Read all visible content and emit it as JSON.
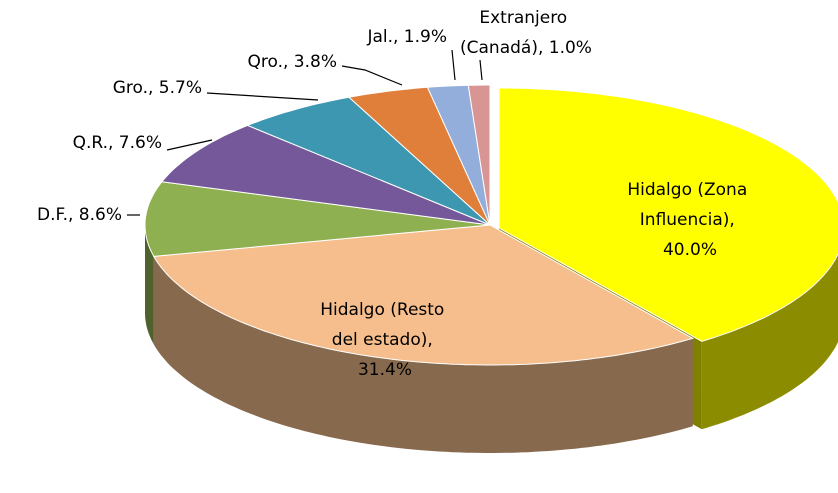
{
  "chart_data": {
    "type": "pie3d",
    "values": [
      40.0,
      31.4,
      8.6,
      7.6,
      5.7,
      3.8,
      1.9,
      1.0
    ],
    "value_labels": [
      "Hidalgo (Zona Influencia), 40.0%",
      "Hidalgo (Resto del estado), 31.4%",
      "D.F., 8.6%",
      "Q.R., 7.6%",
      "Gro., 5.7%",
      "Qro., 3.8%",
      "Jal., 1.9%",
      "Extranjero (Canadá), 1.0%"
    ],
    "colors": [
      "#ffff00",
      "#f5be8c",
      "#8fb050",
      "#74589a",
      "#3d97b0",
      "#e07f3a",
      "#94aedb",
      "#d99594"
    ]
  }
}
